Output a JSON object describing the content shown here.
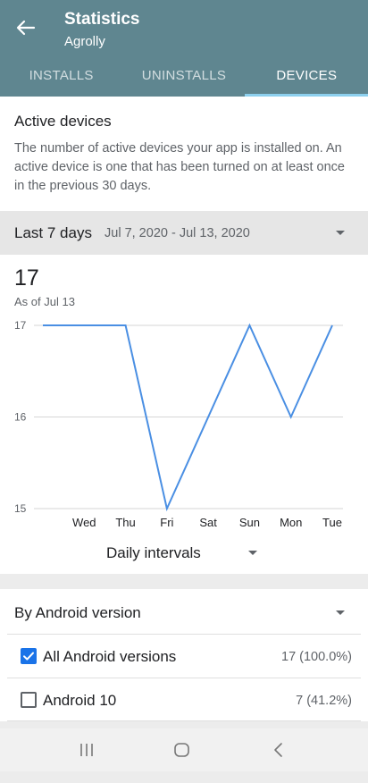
{
  "header": {
    "title": "Statistics",
    "subtitle": "Agrolly",
    "tabs": [
      {
        "label": "INSTALLS",
        "active": false
      },
      {
        "label": "UNINSTALLS",
        "active": false
      },
      {
        "label": "DEVICES",
        "active": true
      }
    ],
    "accent_color": "#5f8690"
  },
  "active_devices": {
    "title": "Active devices",
    "description": "The number of active devices your app is installed on. An active device is one that has been turned on at least once in the previous 30 days."
  },
  "period": {
    "label": "Last 7 days",
    "range": "Jul 7, 2020 - Jul 13, 2020"
  },
  "summary": {
    "value": "17",
    "as_of": "As of Jul 13"
  },
  "chart_data": {
    "type": "line",
    "x": [
      "Tue",
      "Wed",
      "Thu",
      "Fri",
      "Sat",
      "Sun",
      "Mon",
      "Tue"
    ],
    "x_tick_labels": [
      "Wed",
      "Thu",
      "Fri",
      "Sat",
      "Sun",
      "Mon",
      "Tue"
    ],
    "series": [
      {
        "values": [
          17,
          17,
          17,
          15,
          16,
          17,
          16,
          17
        ],
        "color": "#4a8fe3"
      }
    ],
    "y_ticks": [
      "15",
      "16",
      "17"
    ],
    "ylim": [
      15,
      17
    ],
    "grid": true
  },
  "interval": {
    "label": "Daily intervals"
  },
  "versions": {
    "header": "By Android version",
    "rows": [
      {
        "label": "All Android versions",
        "value": "17 (100.0%)",
        "checked": true
      },
      {
        "label": "Android 10",
        "value": "7 (41.2%)",
        "checked": false
      }
    ]
  },
  "icons": {
    "back": "arrow-left-icon",
    "recents": "recent-apps-icon",
    "home": "home-icon",
    "nav_back": "nav-back-icon"
  }
}
